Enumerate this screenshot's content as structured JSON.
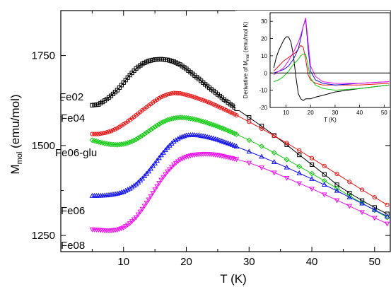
{
  "chart_data": [
    {
      "type": "scatter",
      "title": "",
      "xlabel": "T (K)",
      "ylabel_main": "M",
      "ylabel_sub": "mol",
      "ylabel_unit": " (emu/mol)",
      "xlim": [
        0,
        52.5
      ],
      "ylim": [
        1205,
        1875
      ],
      "xticks": [
        10,
        20,
        30,
        40,
        50
      ],
      "yticks": [
        1250,
        1500,
        1750
      ],
      "grid": false,
      "legend": "none",
      "series": [
        {
          "name": "Fe02",
          "color": "#000000",
          "marker": "square",
          "points": [
            [
              5,
              1612
            ],
            [
              6,
              1614
            ],
            [
              7,
              1625
            ],
            [
              8,
              1638
            ],
            [
              9,
              1654
            ],
            [
              10,
              1675
            ],
            [
              11,
              1696
            ],
            [
              12,
              1714
            ],
            [
              13,
              1727
            ],
            [
              14,
              1735
            ],
            [
              15,
              1739
            ],
            [
              16,
              1740
            ],
            [
              17,
              1738
            ],
            [
              18,
              1733
            ],
            [
              19,
              1725
            ],
            [
              20,
              1713
            ],
            [
              21,
              1699
            ],
            [
              22,
              1685
            ],
            [
              23,
              1670
            ],
            [
              24,
              1656
            ],
            [
              25,
              1642
            ],
            [
              26,
              1628
            ],
            [
              27,
              1615
            ],
            [
              28,
              1602
            ],
            [
              30,
              1578
            ],
            [
              32,
              1554
            ],
            [
              34,
              1528
            ],
            [
              36,
              1502
            ],
            [
              38,
              1474
            ],
            [
              40,
              1447
            ],
            [
              42,
              1420
            ],
            [
              44,
              1391
            ],
            [
              46,
              1368
            ],
            [
              48,
              1347
            ],
            [
              50,
              1328
            ],
            [
              52,
              1310
            ]
          ]
        },
        {
          "name": "Fe04",
          "color": "#ee1111",
          "marker": "circle",
          "points": [
            [
              5,
              1532
            ],
            [
              6,
              1532
            ],
            [
              7,
              1535
            ],
            [
              8,
              1540
            ],
            [
              9,
              1548
            ],
            [
              10,
              1559
            ],
            [
              11,
              1571
            ],
            [
              12,
              1584
            ],
            [
              13,
              1598
            ],
            [
              14,
              1611
            ],
            [
              15,
              1624
            ],
            [
              16,
              1635
            ],
            [
              17,
              1642
            ],
            [
              18,
              1646
            ],
            [
              19,
              1645
            ],
            [
              20,
              1641
            ],
            [
              21,
              1636
            ],
            [
              22,
              1630
            ],
            [
              23,
              1624
            ],
            [
              24,
              1617
            ],
            [
              25,
              1609
            ],
            [
              26,
              1601
            ],
            [
              27,
              1593
            ],
            [
              28,
              1584
            ],
            [
              30,
              1566
            ],
            [
              32,
              1547
            ],
            [
              34,
              1527
            ],
            [
              36,
              1507
            ],
            [
              38,
              1486
            ],
            [
              40,
              1465
            ],
            [
              42,
              1443
            ],
            [
              44,
              1421
            ],
            [
              46,
              1399
            ],
            [
              48,
              1377
            ],
            [
              50,
              1356
            ],
            [
              52,
              1335
            ]
          ]
        },
        {
          "name": "Fe06-glu",
          "color": "#11cc11",
          "marker": "diamond",
          "points": [
            [
              5,
              1515
            ],
            [
              6,
              1510
            ],
            [
              7,
              1506
            ],
            [
              8,
              1503
            ],
            [
              9,
              1502
            ],
            [
              10,
              1504
            ],
            [
              11,
              1509
            ],
            [
              12,
              1517
            ],
            [
              13,
              1528
            ],
            [
              14,
              1540
            ],
            [
              15,
              1552
            ],
            [
              16,
              1563
            ],
            [
              17,
              1571
            ],
            [
              18,
              1576
            ],
            [
              19,
              1578
            ],
            [
              20,
              1577
            ],
            [
              21,
              1574
            ],
            [
              22,
              1570
            ],
            [
              23,
              1565
            ],
            [
              24,
              1559
            ],
            [
              25,
              1553
            ],
            [
              26,
              1546
            ],
            [
              27,
              1539
            ],
            [
              28,
              1531
            ],
            [
              30,
              1515
            ],
            [
              32,
              1498
            ],
            [
              34,
              1480
            ],
            [
              36,
              1461
            ],
            [
              38,
              1442
            ],
            [
              40,
              1422
            ],
            [
              42,
              1402
            ],
            [
              44,
              1381
            ],
            [
              46,
              1360
            ],
            [
              48,
              1340
            ],
            [
              50,
              1320
            ],
            [
              52,
              1300
            ]
          ]
        },
        {
          "name": "Fe06",
          "color": "#1111ee",
          "marker": "triangle-up",
          "points": [
            [
              5,
              1360
            ],
            [
              6,
              1360
            ],
            [
              7,
              1361
            ],
            [
              8,
              1363
            ],
            [
              9,
              1366
            ],
            [
              10,
              1371
            ],
            [
              11,
              1380
            ],
            [
              12,
              1392
            ],
            [
              13,
              1408
            ],
            [
              14,
              1428
            ],
            [
              15,
              1450
            ],
            [
              16,
              1473
            ],
            [
              17,
              1494
            ],
            [
              18,
              1511
            ],
            [
              19,
              1522
            ],
            [
              20,
              1528
            ],
            [
              21,
              1529
            ],
            [
              22,
              1528
            ],
            [
              23,
              1525
            ],
            [
              24,
              1521
            ],
            [
              25,
              1516
            ],
            [
              26,
              1510
            ],
            [
              27,
              1504
            ],
            [
              28,
              1497
            ],
            [
              30,
              1483
            ],
            [
              32,
              1469
            ],
            [
              34,
              1454
            ],
            [
              36,
              1439
            ],
            [
              38,
              1423
            ],
            [
              40,
              1407
            ],
            [
              42,
              1391
            ],
            [
              44,
              1374
            ],
            [
              46,
              1356
            ],
            [
              48,
              1339
            ],
            [
              50,
              1321
            ],
            [
              52,
              1303
            ]
          ]
        },
        {
          "name": "Fe08",
          "color": "#ee11ee",
          "marker": "triangle-down",
          "points": [
            [
              5,
              1267
            ],
            [
              6,
              1266
            ],
            [
              7,
              1264
            ],
            [
              8,
              1264
            ],
            [
              9,
              1266
            ],
            [
              10,
              1272
            ],
            [
              11,
              1284
            ],
            [
              12,
              1301
            ],
            [
              13,
              1324
            ],
            [
              14,
              1350
            ],
            [
              15,
              1378
            ],
            [
              16,
              1405
            ],
            [
              17,
              1428
            ],
            [
              18,
              1447
            ],
            [
              19,
              1461
            ],
            [
              20,
              1469
            ],
            [
              21,
              1474
            ],
            [
              22,
              1476
            ],
            [
              23,
              1477
            ],
            [
              24,
              1476
            ],
            [
              25,
              1474
            ],
            [
              26,
              1470
            ],
            [
              27,
              1466
            ],
            [
              28,
              1462
            ],
            [
              30,
              1452
            ],
            [
              32,
              1439
            ],
            [
              34,
              1425
            ],
            [
              36,
              1410
            ],
            [
              38,
              1395
            ],
            [
              40,
              1380
            ],
            [
              42,
              1364
            ],
            [
              44,
              1348
            ],
            [
              46,
              1332
            ],
            [
              48,
              1315
            ],
            [
              50,
              1299
            ],
            [
              52,
              1283
            ]
          ]
        }
      ]
    },
    {
      "type": "line",
      "title": "",
      "xlabel": "T (K)",
      "ylabel": "Derivative of M",
      "ylabel_sub": "mol",
      "ylabel_unit": " (emu/mol K)",
      "xlim": [
        3.5,
        52.5
      ],
      "ylim": [
        -20,
        35
      ],
      "xticks": [
        10,
        20,
        30,
        40,
        50
      ],
      "yticks": [
        -20,
        -10,
        0,
        10,
        20,
        30
      ],
      "zero_line": true,
      "grid": false,
      "legend": "none",
      "series": [
        {
          "color": "#000000",
          "x": [
            5,
            6,
            7,
            8,
            9,
            10,
            11,
            12,
            13,
            14,
            15,
            16,
            17,
            18,
            19,
            20,
            22,
            25,
            30,
            40,
            52
          ],
          "y": [
            3,
            9,
            13,
            16,
            19,
            21,
            21,
            18,
            10,
            -2,
            -12,
            -15,
            -16,
            -15,
            -15,
            -15,
            -14,
            -13,
            -11,
            -9,
            -7
          ]
        },
        {
          "color": "#ee1111",
          "x": [
            5,
            7,
            9,
            11,
            13,
            14,
            15,
            16,
            17,
            18,
            19,
            20,
            22,
            25,
            30,
            40,
            52
          ],
          "y": [
            1,
            4,
            7,
            9,
            11,
            12,
            14,
            16,
            15,
            8,
            -1,
            -4,
            -6,
            -7,
            -7,
            -7,
            -6
          ]
        },
        {
          "color": "#11cc11",
          "x": [
            5,
            7,
            9,
            11,
            13,
            15,
            16,
            17,
            18,
            19,
            20,
            22,
            25,
            30,
            40,
            52
          ],
          "y": [
            -5,
            -4,
            -2,
            1,
            5,
            8,
            10,
            11,
            11,
            4,
            -3,
            -7,
            -9,
            -10,
            -9,
            -7
          ]
        },
        {
          "color": "#1111ee",
          "x": [
            5,
            7,
            9,
            11,
            13,
            15,
            16,
            17,
            18,
            19,
            20,
            22,
            25,
            30,
            40,
            52
          ],
          "y": [
            0,
            1,
            2,
            4,
            8,
            14,
            20,
            27,
            31,
            14,
            1,
            -4,
            -6,
            -7,
            -6,
            -5
          ]
        },
        {
          "color": "#ee11ee",
          "x": [
            5,
            7,
            9,
            11,
            13,
            15,
            16,
            17,
            18,
            19,
            20,
            22,
            25,
            30,
            40,
            52
          ],
          "y": [
            -1,
            1,
            3,
            7,
            12,
            18,
            22,
            27,
            32,
            18,
            4,
            -2,
            -5,
            -6,
            -6,
            -5
          ]
        }
      ]
    }
  ]
}
